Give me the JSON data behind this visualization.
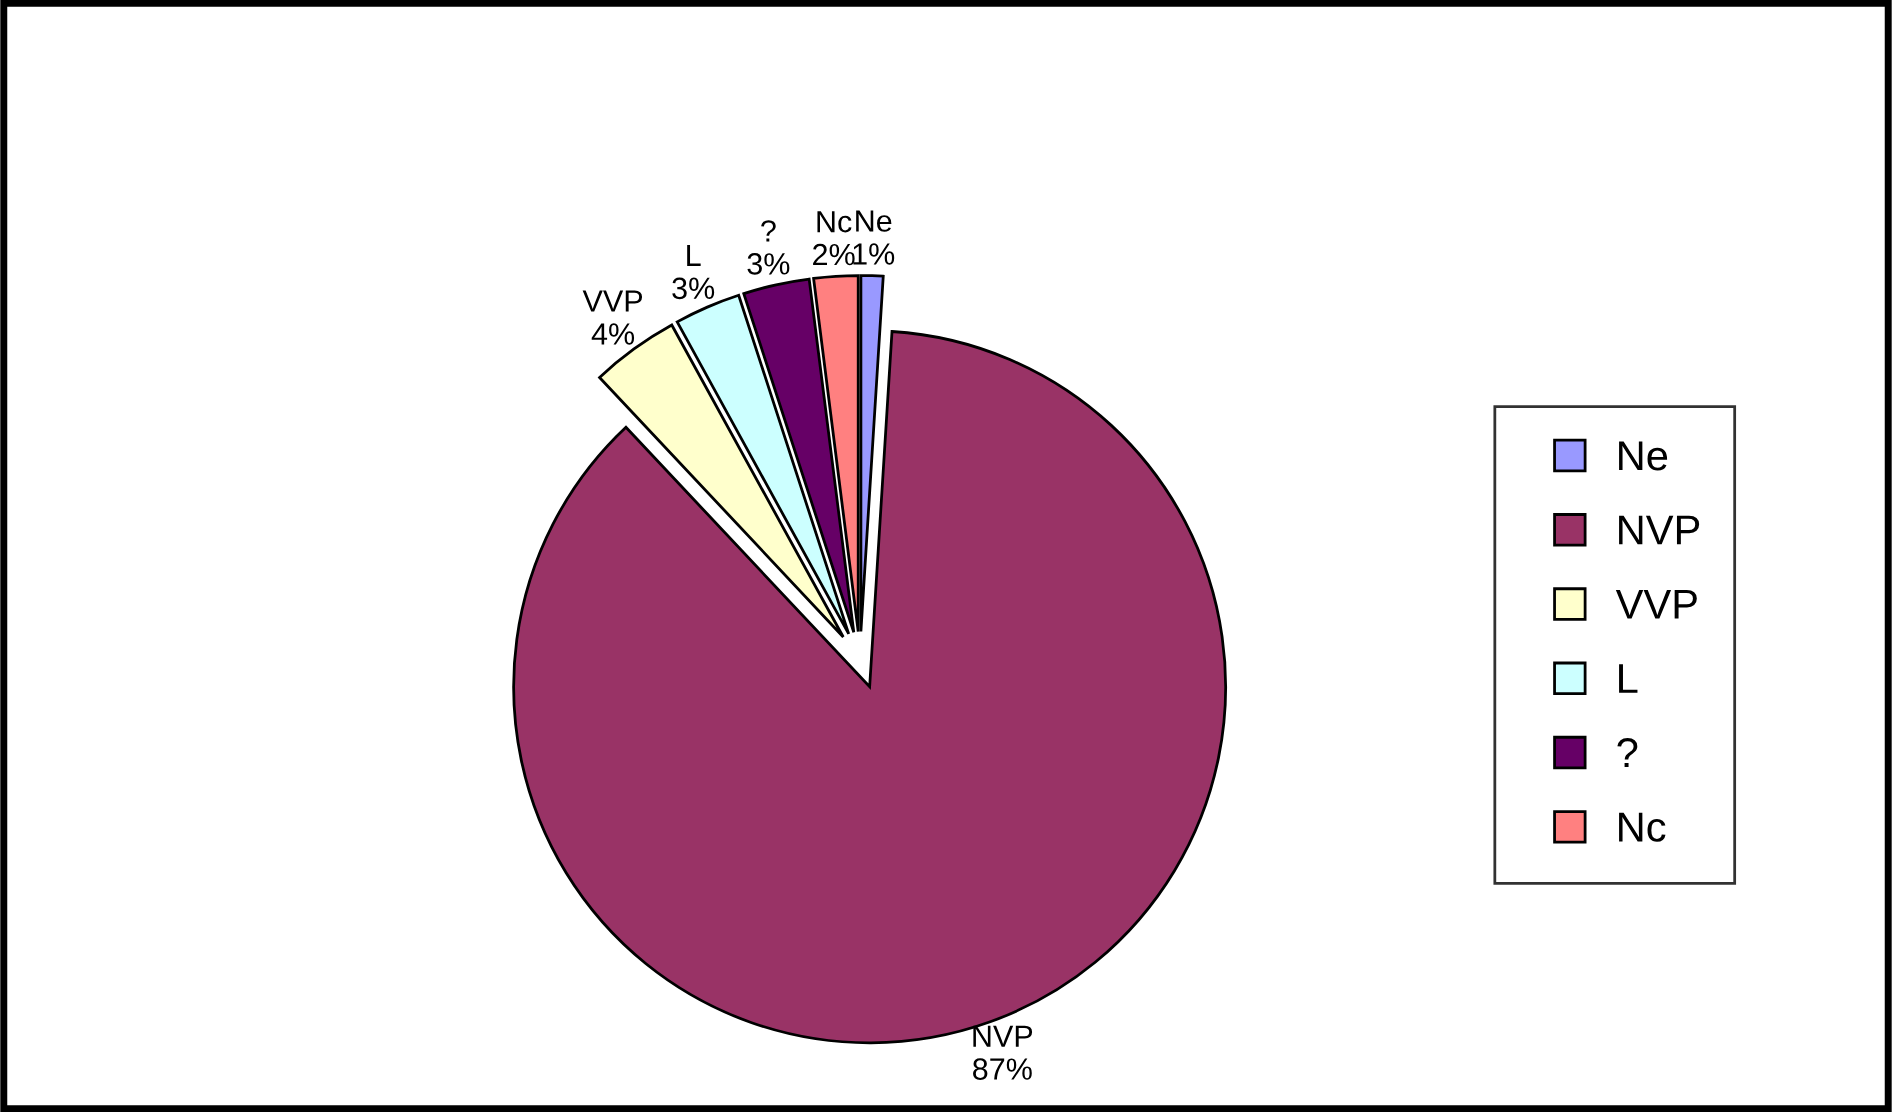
{
  "chart_data": {
    "type": "pie",
    "categories": [
      "Ne",
      "NVP",
      "VVP",
      "L",
      "?",
      "Nc"
    ],
    "values": [
      1,
      87,
      4,
      3,
      3,
      2
    ],
    "value_labels": [
      "1%",
      "87%",
      "4%",
      "3%",
      "3%",
      "2%"
    ],
    "colors": [
      "#9999ff",
      "#993366",
      "#ffffcc",
      "#ccffff",
      "#660066",
      "#ff8080"
    ],
    "legend": "right"
  }
}
